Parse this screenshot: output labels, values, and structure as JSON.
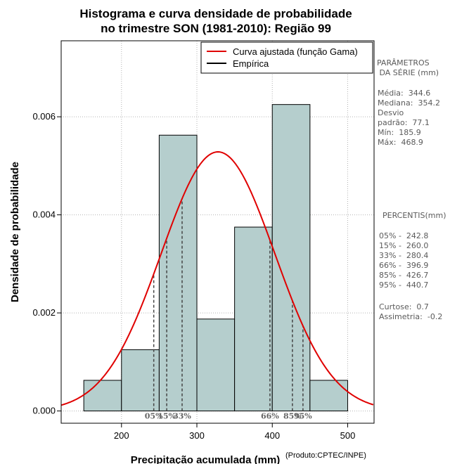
{
  "chart_data": {
    "type": "bar",
    "title_lines": [
      "Histograma e curva densidade de probabilidade",
      "no trimestre SON (1981-2010): Região 99"
    ],
    "xlabel": "Precipitação acumulada (mm)",
    "ylabel": "Densidade de probabilidade",
    "credit": "(Produto:CPTEC/INPE)",
    "xlim": [
      120,
      535
    ],
    "ylim": [
      -0.00025,
      0.00755
    ],
    "x_ticks": [
      200,
      300,
      400,
      500
    ],
    "x_tick_labels": [
      "200",
      "300",
      "400",
      "500"
    ],
    "y_ticks": [
      0,
      0.002,
      0.004,
      0.006
    ],
    "y_tick_labels": [
      "0.000",
      "0.002",
      "0.004",
      "0.006"
    ],
    "grid": true,
    "bins": [
      {
        "x0": 150,
        "x1": 200,
        "density": 0.000625
      },
      {
        "x0": 200,
        "x1": 250,
        "density": 0.00125
      },
      {
        "x0": 250,
        "x1": 300,
        "density": 0.005625
      },
      {
        "x0": 300,
        "x1": 350,
        "density": 0.001875
      },
      {
        "x0": 350,
        "x1": 400,
        "density": 0.00375
      },
      {
        "x0": 400,
        "x1": 450,
        "density": 0.00625
      },
      {
        "x0": 450,
        "x1": 500,
        "density": 0.000625
      }
    ],
    "bar_color": "#b5cecd",
    "gamma_fit": {
      "mean": 328,
      "sd": 75.5,
      "color": "#e00000"
    },
    "legend": {
      "position": "top-right",
      "entries": [
        {
          "label": "Curva ajustada (função Gama)",
          "color": "#e00000"
        },
        {
          "label": "Empírica",
          "color": "#000000"
        }
      ]
    },
    "percentiles": [
      {
        "label": "05%",
        "value": 242.8
      },
      {
        "label": "15%",
        "value": 260.0
      },
      {
        "label": "33%",
        "value": 280.4
      },
      {
        "label": "66%",
        "value": 396.9
      },
      {
        "label": "85%",
        "value": 426.7
      },
      {
        "label": "95%",
        "value": 440.7
      }
    ]
  },
  "side_panel": {
    "params_lines": [
      "PARÂMETROS",
      " DA SÉRIE (mm)"
    ],
    "stats_lines": [
      "Média:  344.6",
      "Mediana:  354.2",
      "Desvio",
      "padrão:  77.1",
      "Mín:  185.9",
      "Máx:  468.9"
    ],
    "percentis_title": "PERCENTIS(mm)",
    "percentis_lines": [
      "05% -  242.8",
      "15% -  260.0",
      "33% -  280.4",
      "66% -  396.9",
      "85% -  426.7",
      "95% -  440.7"
    ],
    "extra_lines": [
      "Curtose:  0.7",
      "Assimetria:  -0.2"
    ]
  }
}
